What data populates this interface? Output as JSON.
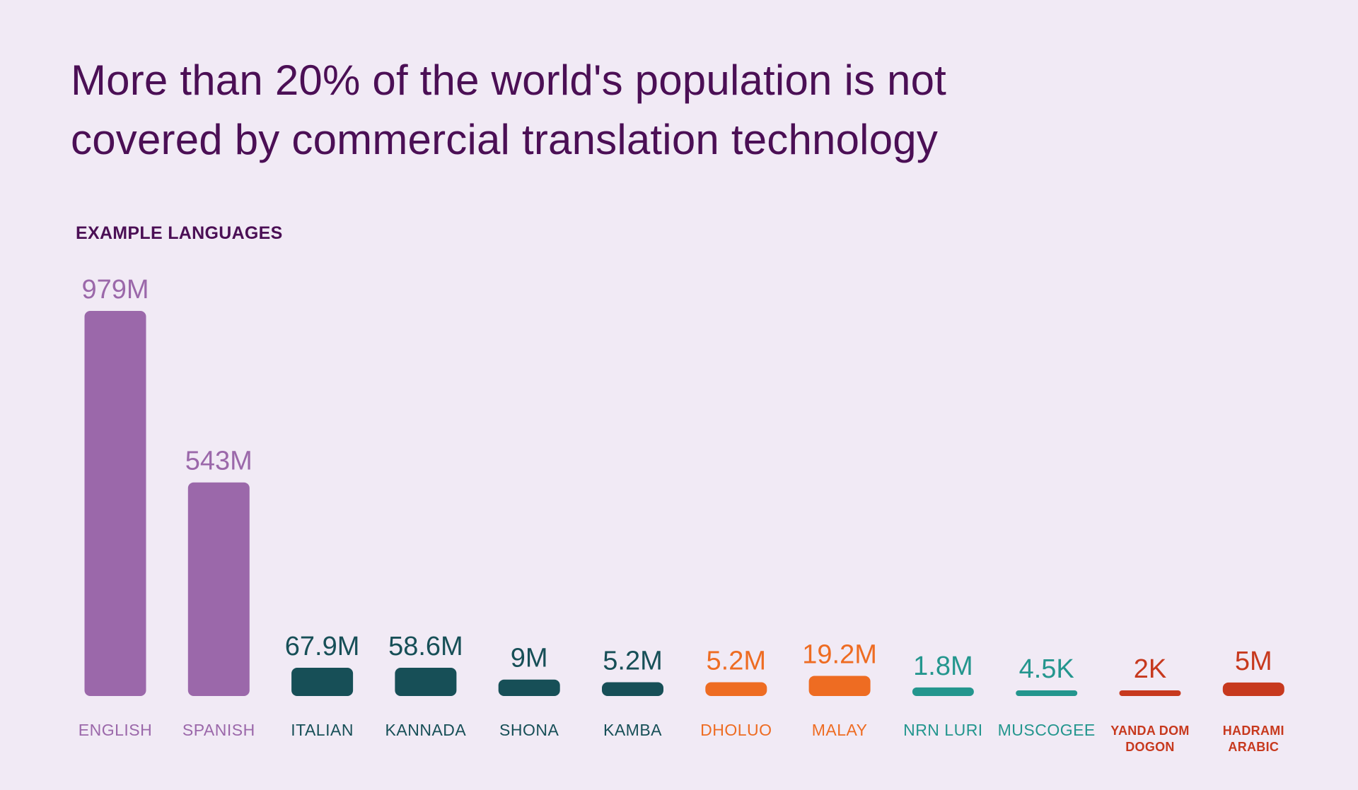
{
  "title_lines": [
    "More than 20% of the world's population is not",
    "covered by commercial translation technology"
  ],
  "section_label": "EXAMPLE LANGUAGES",
  "colors": {
    "background": "#f1eaf5",
    "title": "#4b0f55",
    "purple": "#9b68aa",
    "dark_teal": "#174f57",
    "orange": "#ee6c22",
    "teal": "#24968e",
    "red": "#c7391e"
  },
  "chart_data": {
    "type": "bar",
    "title": "More than 20% of the world's population is not covered by commercial translation technology",
    "xlabel": "",
    "ylabel": "",
    "ylim": [
      0,
      979000000
    ],
    "grid": false,
    "legend": "none",
    "categories": [
      "ENGLISH",
      "SPANISH",
      "ITALIAN",
      "KANNADA",
      "SHONA",
      "KAMBA",
      "DHOLUO",
      "MALAY",
      "NRN LURI",
      "MUSCOGEE",
      "YANDA DOM DOGON",
      "HADRAMI ARABIC"
    ],
    "category_lines": [
      [
        "ENGLISH"
      ],
      [
        "SPANISH"
      ],
      [
        "ITALIAN"
      ],
      [
        "KANNADA"
      ],
      [
        "SHONA"
      ],
      [
        "KAMBA"
      ],
      [
        "DHOLUO"
      ],
      [
        "MALAY"
      ],
      [
        "NRN LURI"
      ],
      [
        "MUSCOGEE"
      ],
      [
        "YANDA DOM",
        "DOGON"
      ],
      [
        "HADRAMI",
        "ARABIC"
      ]
    ],
    "values": [
      979000000,
      543000000,
      67900000,
      58600000,
      9000000,
      5200000,
      5200000,
      19200000,
      1800000,
      4500,
      2000,
      5000000
    ],
    "value_labels": [
      "979M",
      "543M",
      "67.9M",
      "58.6M",
      "9M",
      "5.2M",
      "5.2M",
      "19.2M",
      "1.8M",
      "4.5K",
      "2K",
      "5M"
    ],
    "bar_colors": [
      "#9b68aa",
      "#9b68aa",
      "#174f57",
      "#174f57",
      "#174f57",
      "#174f57",
      "#ee6c22",
      "#ee6c22",
      "#24968e",
      "#24968e",
      "#c7391e",
      "#c7391e"
    ]
  }
}
